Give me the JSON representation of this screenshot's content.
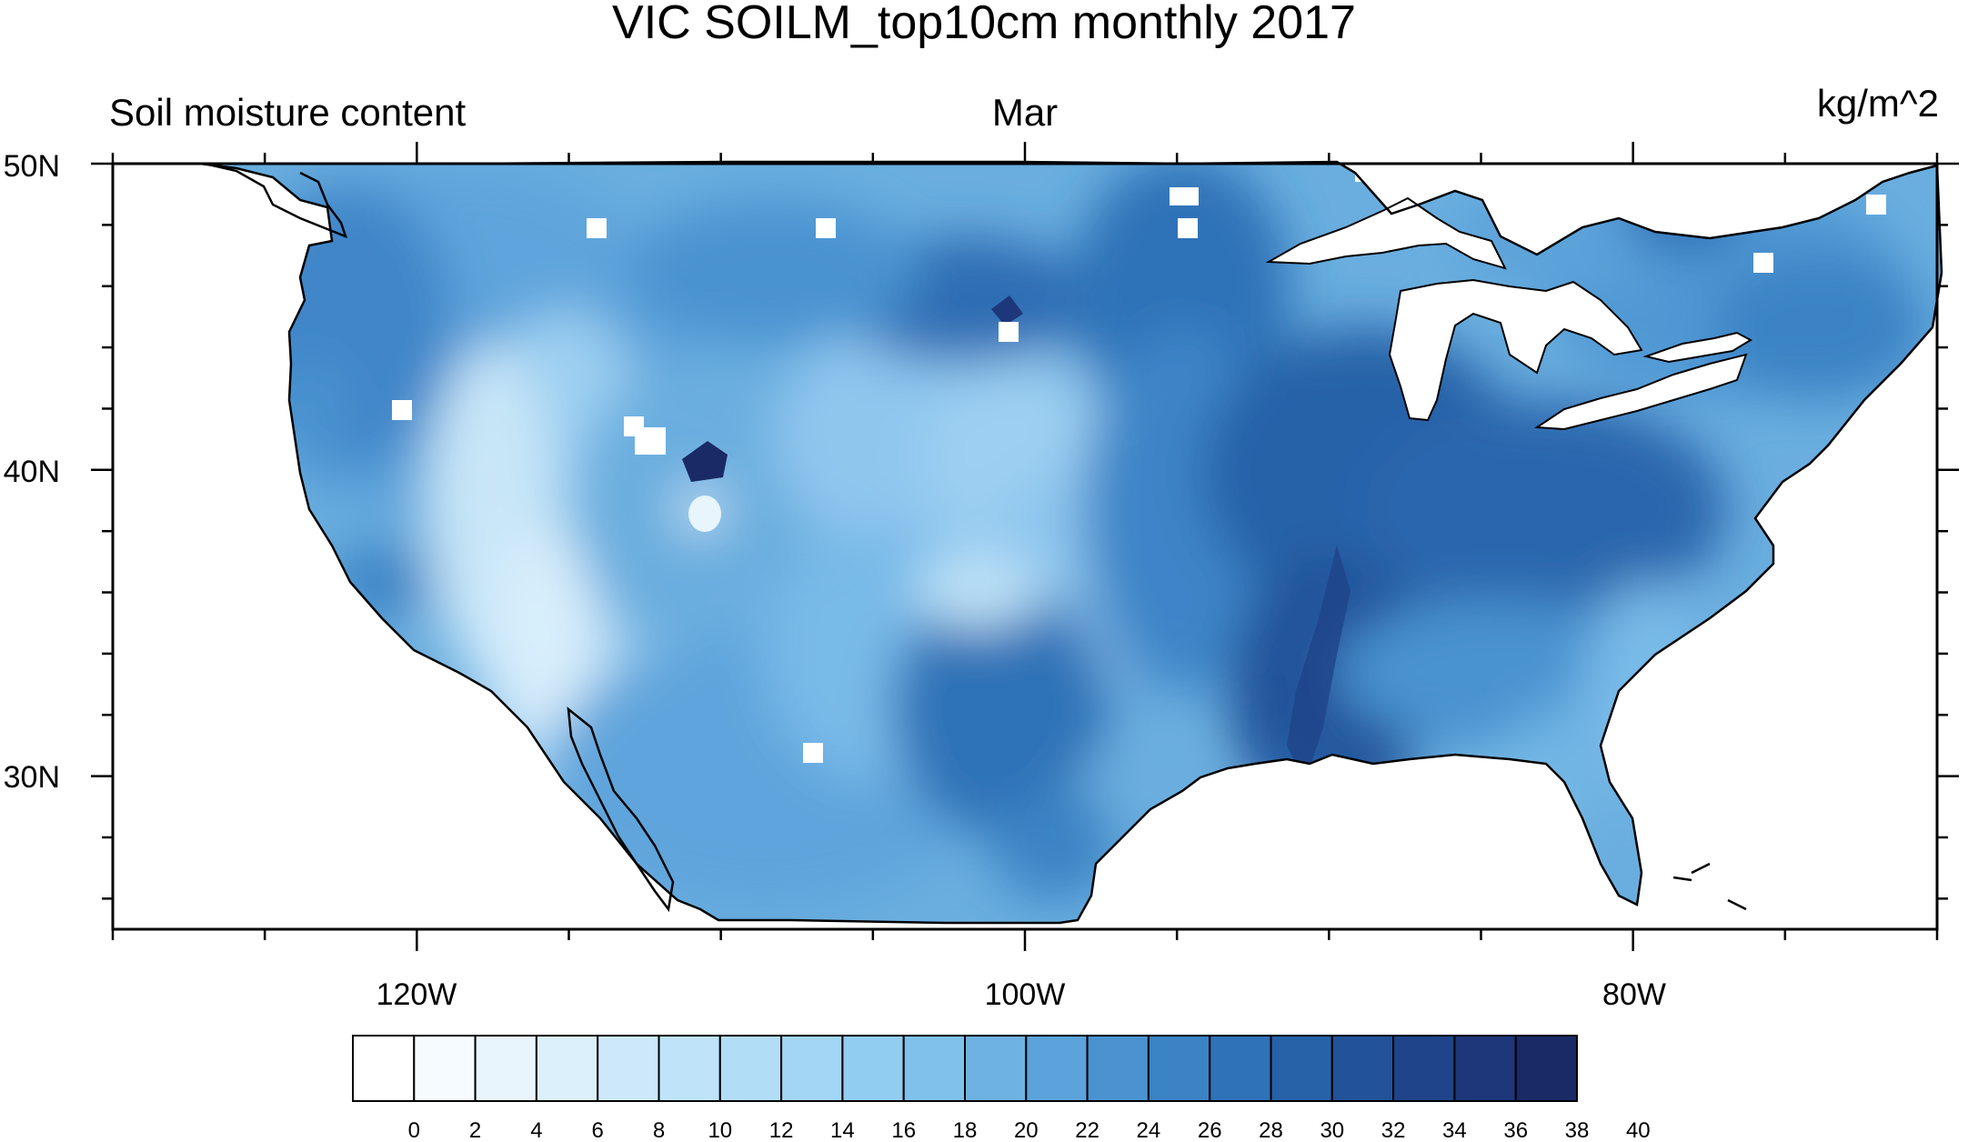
{
  "title": "VIC SOILM_top10cm monthly 2017",
  "subtitle_left": "Soil moisture content",
  "subtitle_center": "Mar",
  "subtitle_right": "kg/m^2",
  "lat_labels": [
    "50N",
    "40N",
    "30N"
  ],
  "lon_labels": [
    "120W",
    "100W",
    "80W"
  ],
  "colorbar": {
    "labels": [
      "0",
      "2",
      "4",
      "6",
      "8",
      "10",
      "12",
      "14",
      "16",
      "18",
      "20",
      "22",
      "24",
      "26",
      "28",
      "30",
      "32",
      "34",
      "36",
      "38",
      "40"
    ],
    "colors": [
      "#ffffff",
      "#f5fbff",
      "#e8f5fd",
      "#dcf0fb",
      "#cde9f9",
      "#bfe3f8",
      "#b2ddf6",
      "#a3d6f4",
      "#91cdf1",
      "#7fc1ea",
      "#6db2e2",
      "#5ba3da",
      "#4a93d0",
      "#3b83c5",
      "#2f72b7",
      "#2762a8",
      "#22539a",
      "#1f448a",
      "#1d377a",
      "#1a2a66"
    ]
  },
  "chart_data": {
    "type": "heatmap",
    "title": "VIC SOILM_top10cm monthly 2017",
    "variable": "Soil moisture content",
    "month": "Mar",
    "units": "kg/m^2",
    "x_range": [
      -130,
      -70
    ],
    "y_range": [
      25,
      50
    ],
    "x_ticks": [
      -120,
      -100,
      -80
    ],
    "y_ticks": [
      50,
      40,
      30
    ],
    "levels": [
      0,
      2,
      4,
      6,
      8,
      10,
      12,
      14,
      16,
      18,
      20,
      22,
      24,
      26,
      28,
      30,
      32,
      34,
      36,
      38,
      40
    ],
    "regions": [
      {
        "lon": -118,
        "lat": 39,
        "level": 10
      },
      {
        "lon": -113,
        "lat": 38,
        "level": 16
      },
      {
        "lon": -104,
        "lat": 41,
        "level": 18
      },
      {
        "lon": -100,
        "lat": 45,
        "level": 22
      },
      {
        "lon": -90,
        "lat": 38,
        "level": 30
      },
      {
        "lon": -82,
        "lat": 36,
        "level": 26
      },
      {
        "lon": -91,
        "lat": 32,
        "level": 34
      },
      {
        "lon": -110,
        "lat": 40,
        "level": 40
      }
    ]
  }
}
